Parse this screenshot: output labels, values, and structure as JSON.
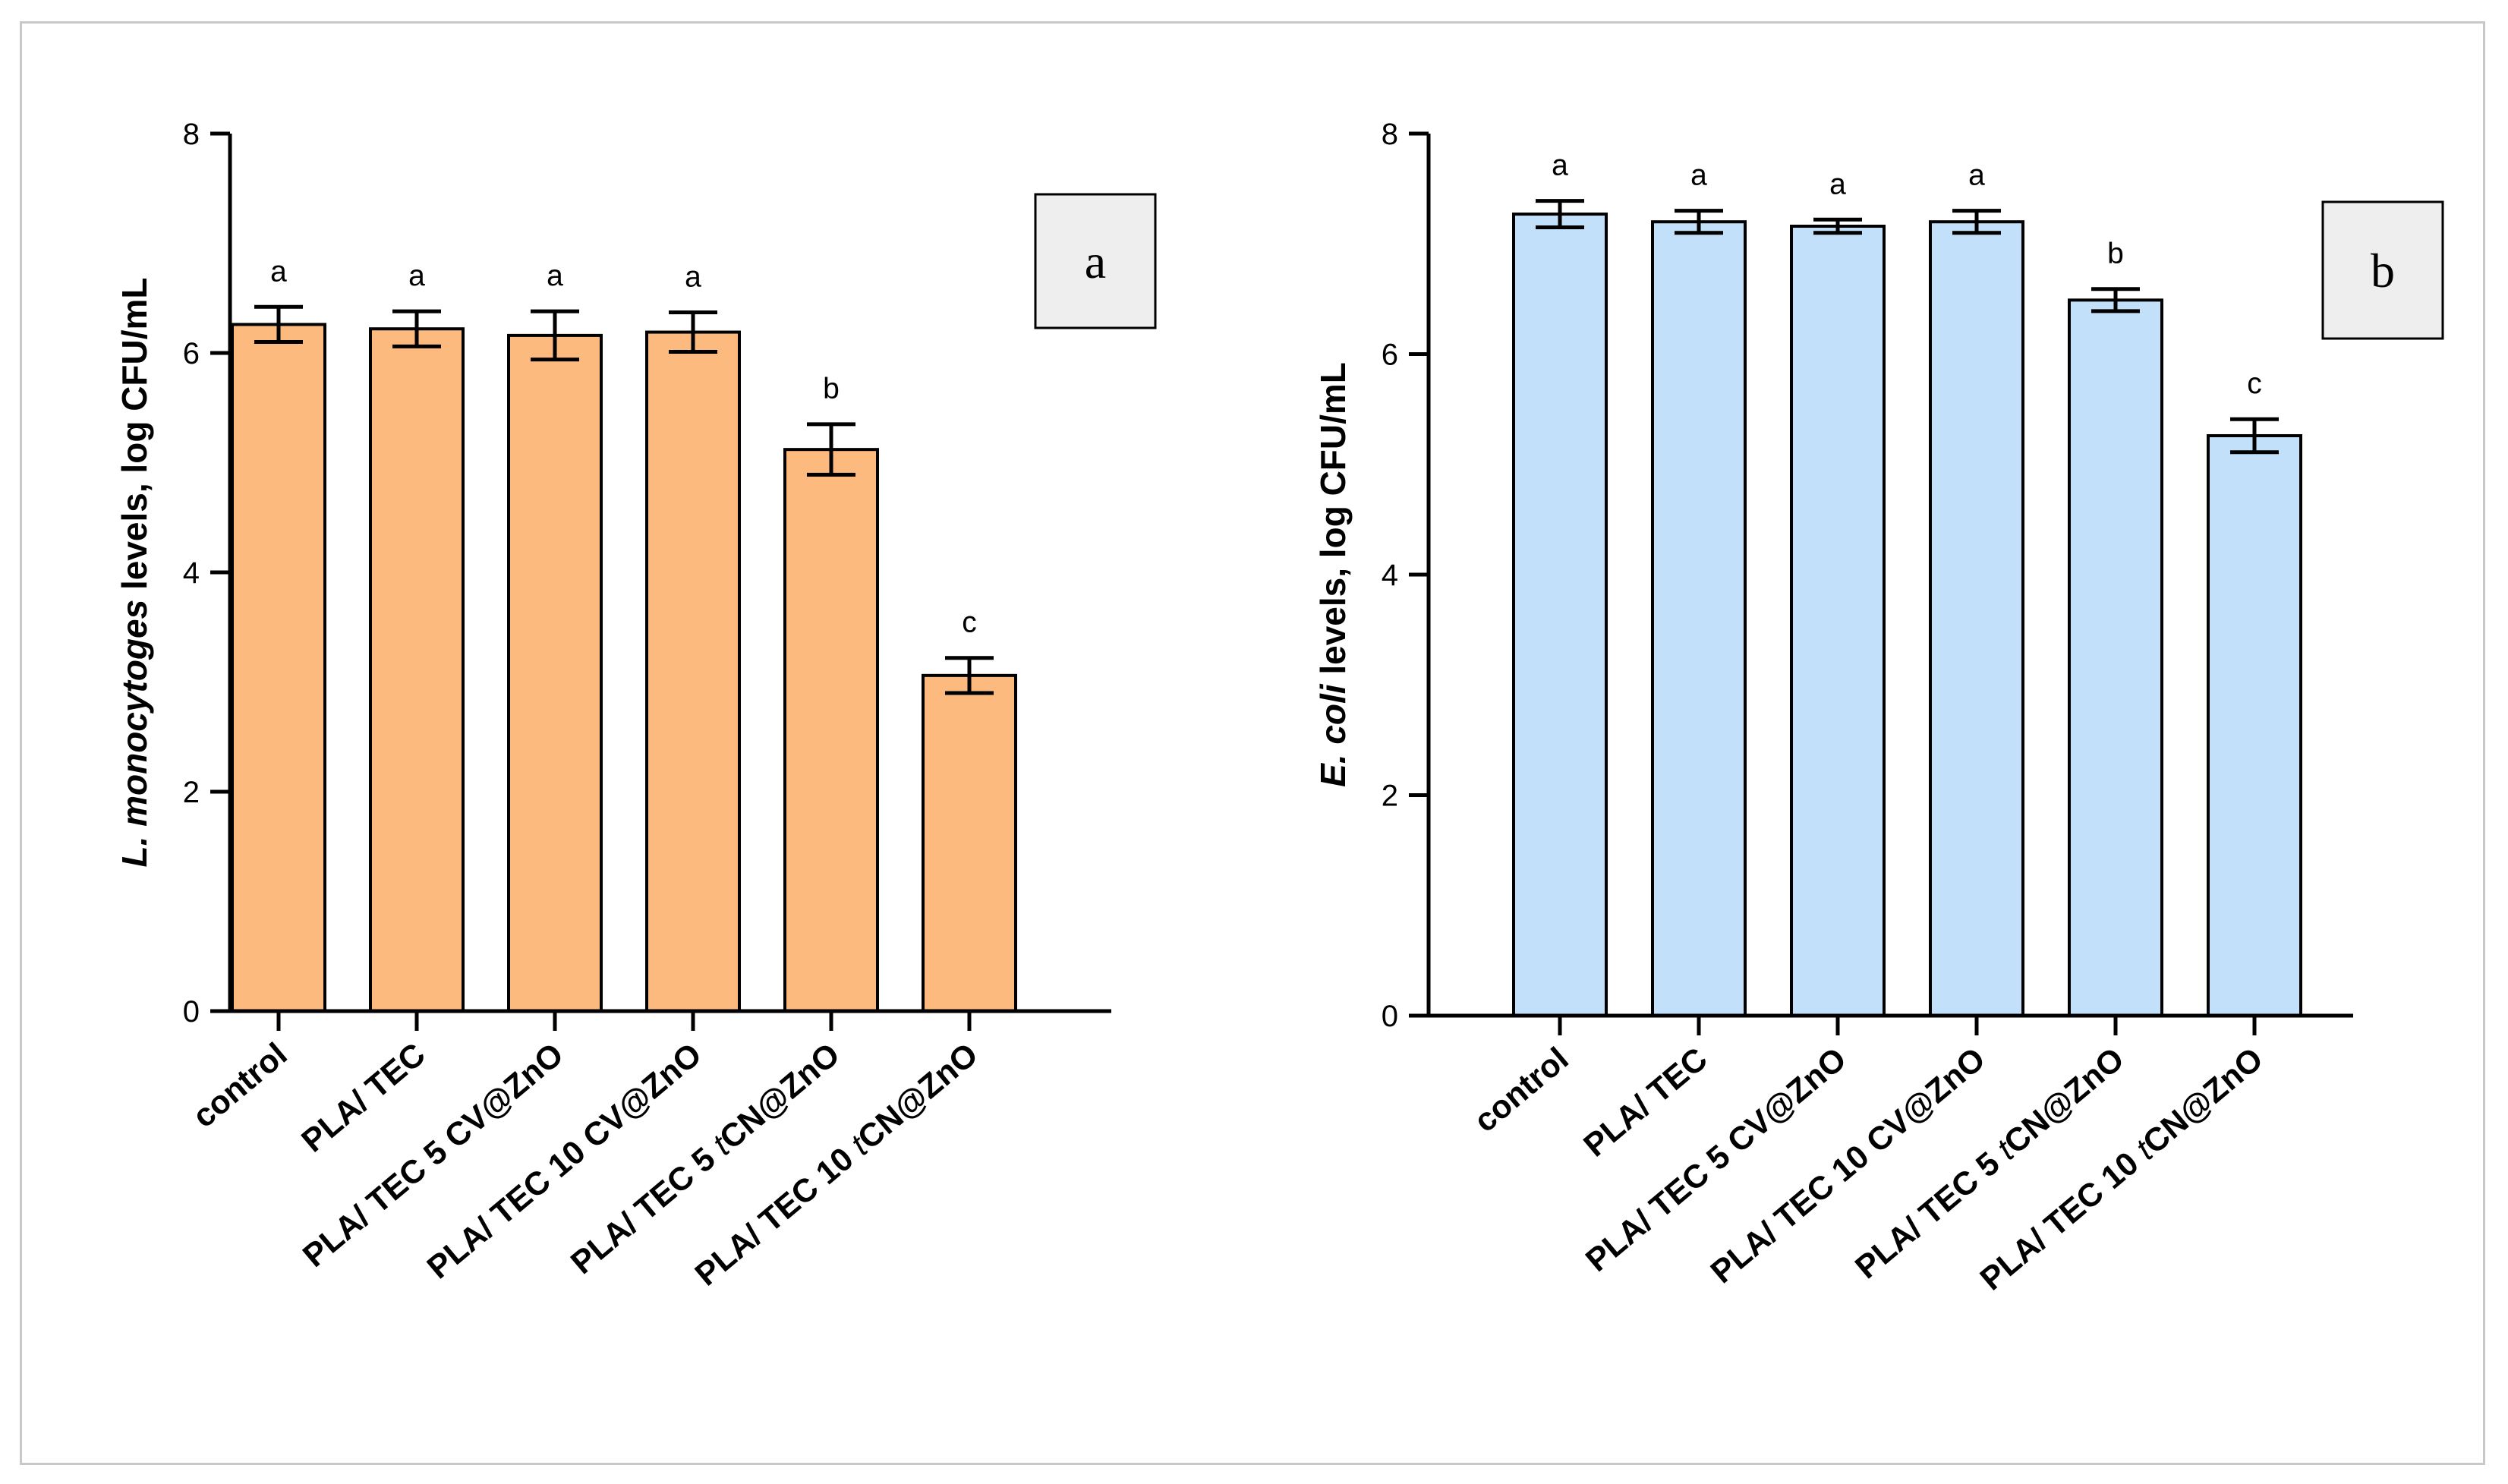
{
  "chart_data": [
    {
      "type": "bar",
      "panel_label": "a",
      "ylabel": {
        "italic": "L. monocytoges",
        "rest": " levels, log CFU/mL"
      },
      "ylim": [
        0,
        8
      ],
      "yticks": [
        0,
        2,
        4,
        6,
        8
      ],
      "color": "#FDBA7E",
      "categories": [
        {
          "pre": "control",
          "ital": "",
          "post": ""
        },
        {
          "pre": "PLA/ TEC",
          "ital": "",
          "post": ""
        },
        {
          "pre": "PLA/ TEC 5 CV@ZnO",
          "ital": "",
          "post": ""
        },
        {
          "pre": "PLA/ TEC 10 CV@ZnO",
          "ital": "",
          "post": ""
        },
        {
          "pre": "PLA/ TEC 5 ",
          "ital": "t",
          "post": "CN@ZnO"
        },
        {
          "pre": "PLA/ TEC 10 ",
          "ital": "t",
          "post": "CN@ZnO"
        }
      ],
      "values": [
        6.26,
        6.22,
        6.16,
        6.19,
        5.12,
        3.06
      ],
      "errors": [
        0.16,
        0.16,
        0.22,
        0.18,
        0.23,
        0.16
      ],
      "letters": [
        "a",
        "a",
        "a",
        "a",
        "b",
        "c"
      ]
    },
    {
      "type": "bar",
      "panel_label": "b",
      "ylabel": {
        "italic": "E. coli",
        "rest": " levels, log CFU/mL"
      },
      "ylim": [
        0,
        8
      ],
      "yticks": [
        0,
        2,
        4,
        6,
        8
      ],
      "color": "#C2E0F9",
      "categories": [
        {
          "pre": "control",
          "ital": "",
          "post": ""
        },
        {
          "pre": "PLA/ TEC",
          "ital": "",
          "post": ""
        },
        {
          "pre": "PLA/ TEC 5 CV@ZnO",
          "ital": "",
          "post": ""
        },
        {
          "pre": "PLA/ TEC 10 CV@ZnO",
          "ital": "",
          "post": ""
        },
        {
          "pre": "PLA/ TEC 5 ",
          "ital": "t",
          "post": "CN@ZnO"
        },
        {
          "pre": "PLA/ TEC 10 ",
          "ital": "t",
          "post": "CN@ZnO"
        }
      ],
      "values": [
        7.27,
        7.2,
        7.16,
        7.2,
        6.49,
        5.26
      ],
      "errors": [
        0.12,
        0.1,
        0.06,
        0.1,
        0.1,
        0.15
      ],
      "letters": [
        "a",
        "a",
        "a",
        "a",
        "b",
        "c"
      ]
    }
  ]
}
